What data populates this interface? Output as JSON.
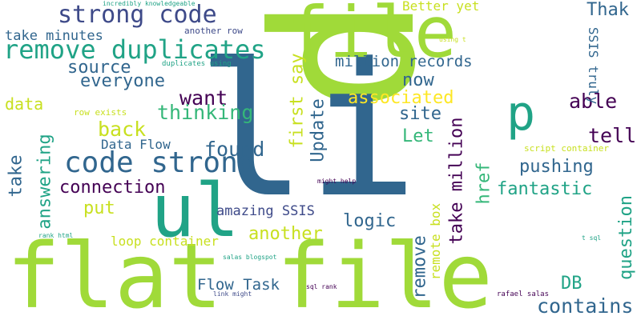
{
  "words": [
    {
      "text": "p",
      "color": "#a0da39",
      "rot": 90
    },
    {
      "text": "li",
      "color": "#31668e",
      "rot": 0
    },
    {
      "text": "ul",
      "color": "#20a386",
      "rot": 0
    },
    {
      "text": "file",
      "color": "#a0da39",
      "rot": 0
    },
    {
      "text": "flat file",
      "color": "#a0da39",
      "rot": 0
    },
    {
      "text": "strong code",
      "color": "#3e4a89",
      "rot": 0
    },
    {
      "text": "remove duplicates",
      "color": "#20a386",
      "rot": 0
    },
    {
      "text": "code strong",
      "color": "#31668e",
      "rot": 0
    },
    {
      "text": "p",
      "color": "#20a386",
      "rot": 0
    },
    {
      "text": "take minutes",
      "color": "#31668e",
      "rot": 0
    },
    {
      "text": "source",
      "color": "#31668e",
      "rot": 0
    },
    {
      "text": "everyone",
      "color": "#31668e",
      "rot": 0
    },
    {
      "text": "million records",
      "color": "#31668e",
      "rot": 0
    },
    {
      "text": "now",
      "color": "#31668e",
      "rot": 0
    },
    {
      "text": "associated",
      "color": "#fde725",
      "rot": 0
    },
    {
      "text": "able",
      "color": "#440154",
      "rot": 0
    },
    {
      "text": "data",
      "color": "#c8e020",
      "rot": 0
    },
    {
      "text": "want",
      "color": "#440154",
      "rot": 0
    },
    {
      "text": "thinking",
      "color": "#35b779",
      "rot": 0
    },
    {
      "text": "back",
      "color": "#c8e020",
      "rot": 0
    },
    {
      "text": "Data Flow",
      "color": "#31668e",
      "rot": 0
    },
    {
      "text": "found",
      "color": "#31668e",
      "rot": 0
    },
    {
      "text": "site",
      "color": "#31668e",
      "rot": 0
    },
    {
      "text": "Let",
      "color": "#35b779",
      "rot": 0
    },
    {
      "text": "tell",
      "color": "#440154",
      "rot": 0
    },
    {
      "text": "pushing",
      "color": "#31668e",
      "rot": 0
    },
    {
      "text": "fantastic",
      "color": "#20a386",
      "rot": 0
    },
    {
      "text": "connection",
      "color": "#440154",
      "rot": 0
    },
    {
      "text": "put",
      "color": "#c8e020",
      "rot": 0
    },
    {
      "text": "amazing SSIS",
      "color": "#3e4a89",
      "rot": 0
    },
    {
      "text": "logic",
      "color": "#31668e",
      "rot": 0
    },
    {
      "text": "another",
      "color": "#c8e020",
      "rot": 0
    },
    {
      "text": "loop container",
      "color": "#c8e020",
      "rot": 0
    },
    {
      "text": "Flow Task",
      "color": "#31668e",
      "rot": 0
    },
    {
      "text": "DB",
      "color": "#20a386",
      "rot": 0
    },
    {
      "text": "contains",
      "color": "#31668e",
      "rot": 0
    },
    {
      "text": "Better yet",
      "color": "#c8e020",
      "rot": 0
    },
    {
      "text": "Thak",
      "color": "#31668e",
      "rot": 0
    },
    {
      "text": "another row",
      "color": "#3e4a89",
      "rot": 0
    },
    {
      "text": "incredibly knowledgeable",
      "color": "#20a386",
      "rot": 0
    },
    {
      "text": "duplicates using",
      "color": "#20a386",
      "rot": 0
    },
    {
      "text": "row exists",
      "color": "#c8e020",
      "rot": 0
    },
    {
      "text": "script container",
      "color": "#c8e020",
      "rot": 0
    },
    {
      "text": "might help",
      "color": "#440154",
      "rot": 0
    },
    {
      "text": "rank html",
      "color": "#20a386",
      "rot": 0
    },
    {
      "text": "salas blogspot",
      "color": "#20a386",
      "rot": 0
    },
    {
      "text": "sql rank",
      "color": "#440154",
      "rot": 0
    },
    {
      "text": "link might",
      "color": "#3e4a89",
      "rot": 0
    },
    {
      "text": "rafael salas",
      "color": "#440154",
      "rot": 0
    },
    {
      "text": "t sql",
      "color": "#20a386",
      "rot": 0
    },
    {
      "text": "using t",
      "color": "#c8e020",
      "rot": 0
    },
    {
      "text": "take",
      "color": "#31668e",
      "rot": -90
    },
    {
      "text": "answering",
      "color": "#20a386",
      "rot": -90
    },
    {
      "text": "first say",
      "color": "#c8e020",
      "rot": -90
    },
    {
      "text": "Update",
      "color": "#31668e",
      "rot": -90
    },
    {
      "text": "remove",
      "color": "#31668e",
      "rot": -90
    },
    {
      "text": "take million",
      "color": "#440154",
      "rot": -90
    },
    {
      "text": "href",
      "color": "#35b779",
      "rot": -90
    },
    {
      "text": "remote box",
      "color": "#c8e020",
      "rot": -90
    },
    {
      "text": "question",
      "color": "#20a386",
      "rot": -90
    },
    {
      "text": "SSIS truly",
      "color": "#31668e",
      "rot": 90
    }
  ]
}
